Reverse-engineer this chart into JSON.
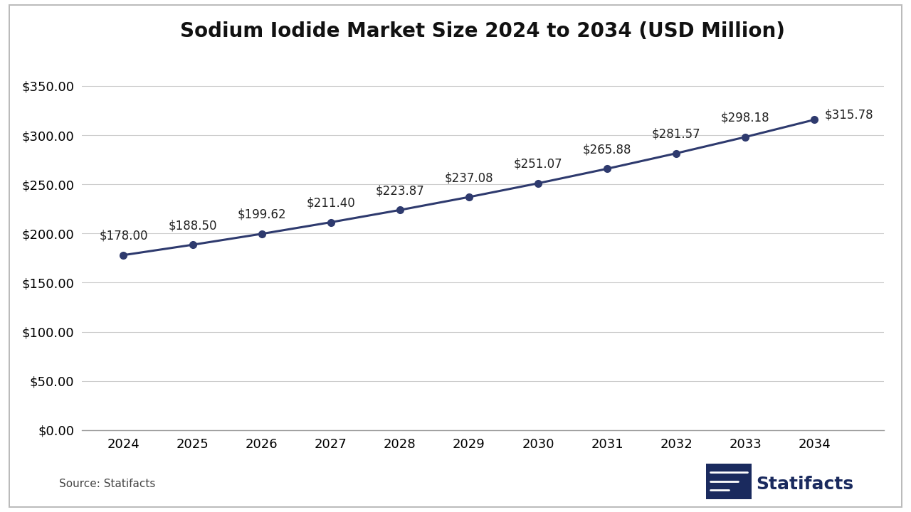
{
  "title": "Sodium Iodide Market Size 2024 to 2034 (USD Million)",
  "years": [
    2024,
    2025,
    2026,
    2027,
    2028,
    2029,
    2030,
    2031,
    2032,
    2033,
    2034
  ],
  "values": [
    178.0,
    188.5,
    199.62,
    211.4,
    223.87,
    237.08,
    251.07,
    265.88,
    281.57,
    298.18,
    315.78
  ],
  "line_color": "#2E3A6E",
  "marker_color": "#2E3A6E",
  "background_color": "#FFFFFF",
  "grid_color": "#CCCCCC",
  "title_fontsize": 20,
  "axis_tick_fontsize": 13,
  "annotation_fontsize": 12,
  "ylim": [
    0,
    375
  ],
  "yticks": [
    0,
    50,
    100,
    150,
    200,
    250,
    300,
    350
  ],
  "source_text": "Source: Statifacts",
  "statifacts_text": "Statifacts",
  "statifacts_color": "#1a2a5e"
}
